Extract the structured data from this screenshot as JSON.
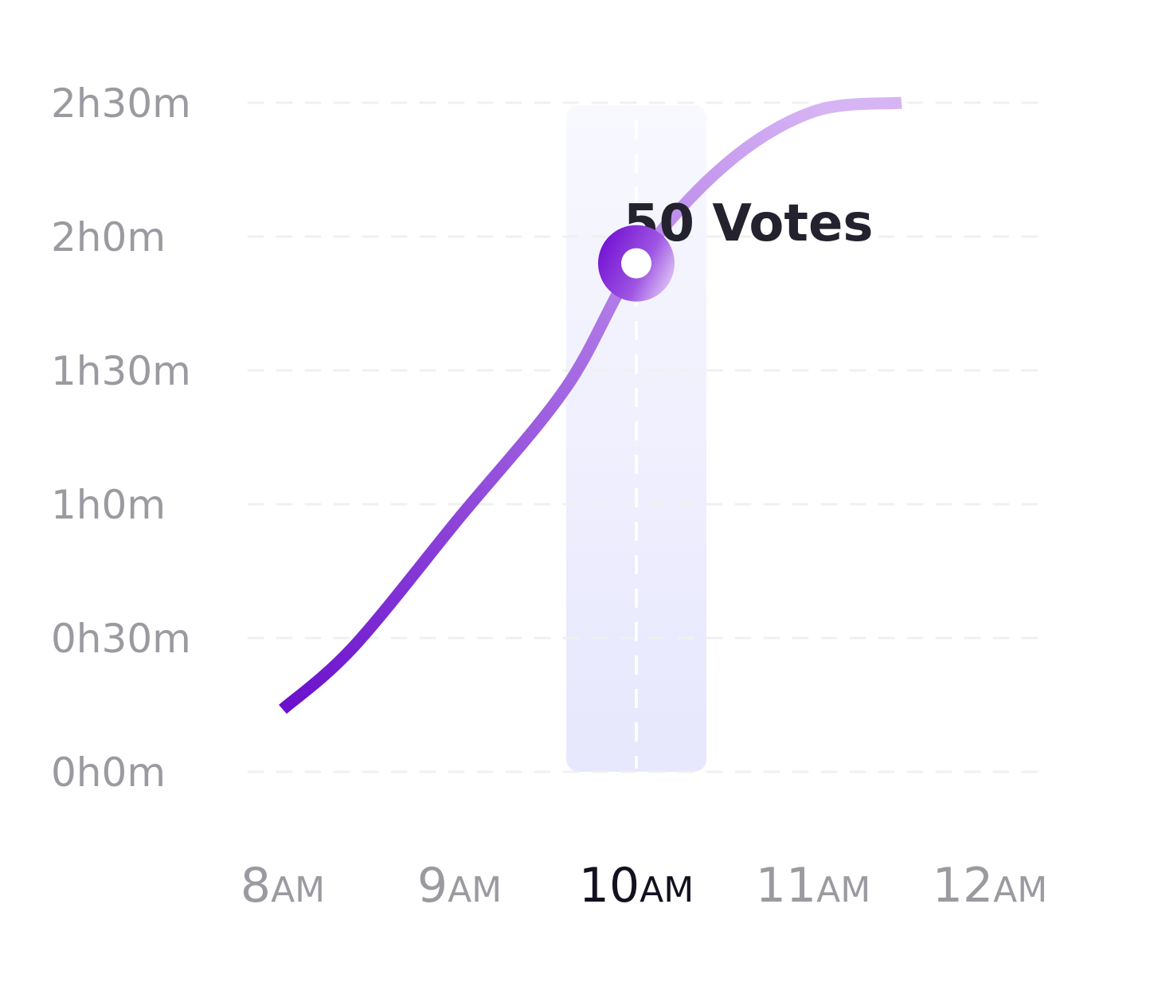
{
  "chart_data": {
    "type": "line",
    "title": "",
    "xlabel": "",
    "ylabel": "",
    "x": [
      "8",
      "9",
      "10",
      "11",
      "12"
    ],
    "x_suffix": "AM",
    "active_x": "10",
    "y_ticks": [
      "0h0m",
      "0h30m",
      "1h0m",
      "1h30m",
      "2h0m",
      "2h30m"
    ],
    "ylim_minutes": [
      0,
      150
    ],
    "series": [
      {
        "x_hours": [
          8.0,
          8.4,
          9.0,
          9.6,
          10.0,
          10.5,
          11.0,
          11.5
        ],
        "y_minutes": [
          14,
          28,
          57,
          86,
          114,
          136,
          148,
          150
        ]
      }
    ],
    "highlight": {
      "x_hours": 10.0,
      "y_minutes": 114,
      "label": "50 Votes"
    },
    "grid": true,
    "grid_style": "dashed",
    "colors": {
      "line_start": "#6a10cc",
      "line_end": "#d7b4f4",
      "axis_text": "#9b9aa1",
      "active_text": "#13111f",
      "annotation_text": "#23222e",
      "highlight_band_top": "#f8f8ff",
      "highlight_band_bottom": "#e7e7fd",
      "grid": "#f0f0f0"
    }
  }
}
